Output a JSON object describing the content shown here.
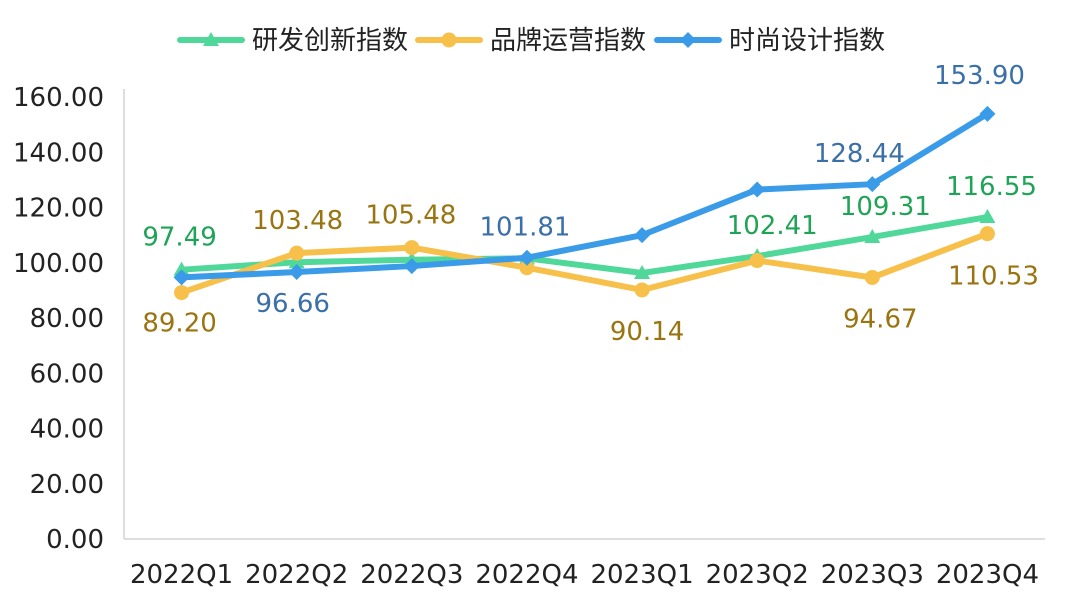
{
  "chart_data": {
    "type": "line",
    "title": "",
    "xlabel": "",
    "ylabel": "",
    "categories": [
      "2022Q1",
      "2022Q2",
      "2022Q3",
      "2022Q4",
      "2023Q1",
      "2023Q2",
      "2023Q3",
      "2023Q4"
    ],
    "ylim": [
      0,
      160
    ],
    "y_ticks": [
      "0.00",
      "20.00",
      "40.00",
      "60.00",
      "80.00",
      "100.00",
      "120.00",
      "140.00",
      "160.00"
    ],
    "grid": false,
    "legend_position": "top",
    "series": [
      {
        "name": "研发创新指数",
        "color": "#4fd89a",
        "label_color": "#1fa356",
        "marker": "triangle",
        "values": [
          97.49,
          100.2,
          101.1,
          101.6,
          96.3,
          102.41,
          109.31,
          116.55
        ],
        "labels": [
          "97.49",
          "",
          "",
          "",
          "",
          "102.41",
          "109.31",
          "116.55"
        ]
      },
      {
        "name": "品牌运营指数",
        "color": "#f7c04a",
        "label_color": "#9a7410",
        "marker": "circle",
        "values": [
          89.2,
          103.48,
          105.48,
          98.2,
          90.14,
          100.8,
          94.67,
          110.53
        ],
        "labels": [
          "89.20",
          "103.48",
          "105.48",
          "",
          "90.14",
          "",
          "94.67",
          "110.53"
        ]
      },
      {
        "name": "时尚设计指数",
        "color": "#3a9be8",
        "label_color": "#3a6fa8",
        "marker": "diamond",
        "values": [
          94.7,
          96.66,
          98.8,
          101.81,
          110.0,
          126.5,
          128.44,
          153.9
        ],
        "labels": [
          "",
          "96.66",
          "",
          "101.81",
          "",
          "",
          "128.44",
          "153.90"
        ]
      }
    ]
  }
}
